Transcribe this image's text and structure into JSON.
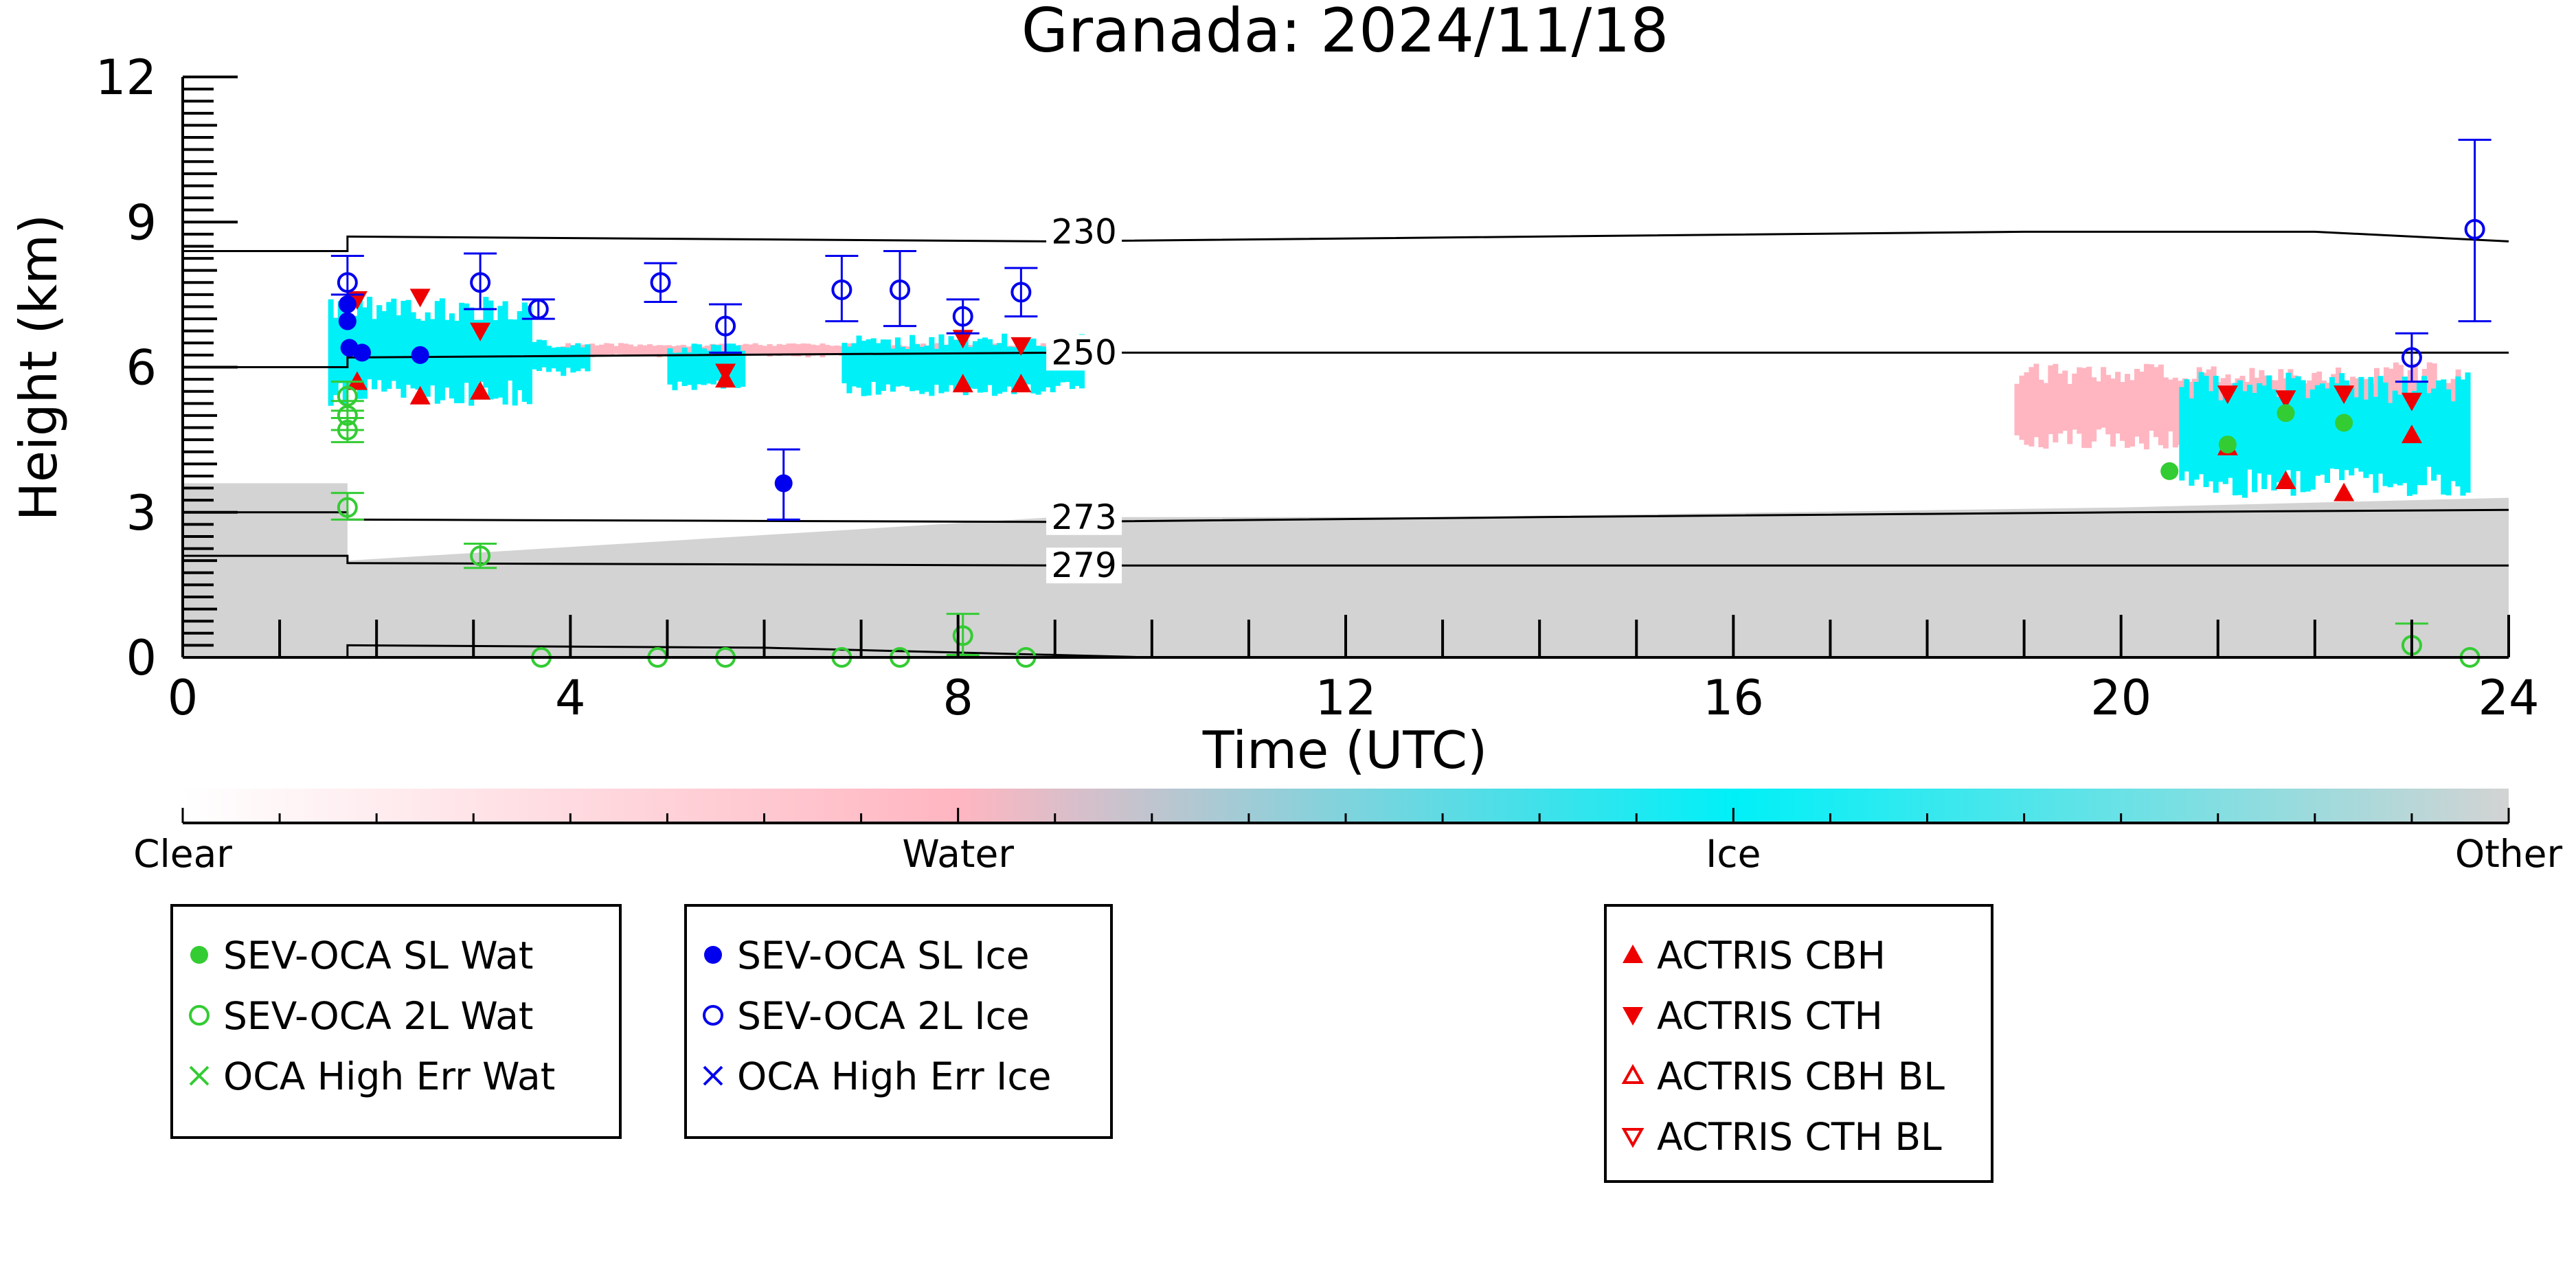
{
  "chart_data": {
    "type": "scatter",
    "title": "Granada: 2024/11/18",
    "xlabel": "Time (UTC)",
    "ylabel": "Height (km)",
    "xlim": [
      0,
      24
    ],
    "ylim": [
      0,
      12
    ],
    "xticks": [
      0,
      4,
      8,
      12,
      16,
      20,
      24
    ],
    "yticks": [
      0,
      3,
      6,
      9,
      12
    ],
    "grid": false,
    "background_classification": {
      "colorbar_labels": [
        "Clear",
        "Water",
        "Ice",
        "Other"
      ],
      "colors": {
        "clear": "#ffffff",
        "water": "#ffb6c1",
        "ice": "#00f0f8",
        "other": "#d3d3d3"
      },
      "other_layer_top_km": [
        [
          0,
          3.6
        ],
        [
          1.7,
          3.6
        ],
        [
          1.7,
          2.0
        ],
        [
          9,
          2.9
        ],
        [
          13,
          2.9
        ],
        [
          20,
          3.1
        ],
        [
          24,
          3.3
        ]
      ],
      "ice_regions": [
        {
          "x": [
            1.5,
            3.6
          ],
          "y": [
            5.2,
            7.5
          ]
        },
        {
          "x": [
            3.6,
            4.2
          ],
          "y": [
            5.8,
            6.6
          ]
        },
        {
          "x": [
            5.0,
            5.8
          ],
          "y": [
            5.5,
            6.5
          ]
        },
        {
          "x": [
            6.8,
            9.3
          ],
          "y": [
            5.4,
            6.7
          ]
        },
        {
          "x": [
            20.6,
            23.6
          ],
          "y": [
            3.3,
            5.9
          ]
        }
      ],
      "water_regions": [
        {
          "x": [
            3.9,
            9.0
          ],
          "y": [
            6.2,
            6.5
          ]
        },
        {
          "x": [
            18.9,
            23.6
          ],
          "y": [
            4.3,
            6.1
          ]
        }
      ]
    },
    "isotherms": [
      {
        "label": "230",
        "label_x": 9.3,
        "points": [
          [
            0,
            8.4
          ],
          [
            1.7,
            8.4
          ],
          [
            1.7,
            8.7
          ],
          [
            9,
            8.6
          ],
          [
            19,
            8.8
          ],
          [
            22,
            8.8
          ],
          [
            24,
            8.6
          ]
        ]
      },
      {
        "label": "250",
        "label_x": 9.3,
        "points": [
          [
            0,
            6.0
          ],
          [
            1.7,
            6.0
          ],
          [
            1.7,
            6.2
          ],
          [
            9,
            6.3
          ],
          [
            20,
            6.3
          ],
          [
            24,
            6.3
          ]
        ]
      },
      {
        "label": "273",
        "label_x": 9.3,
        "points": [
          [
            0,
            3.0
          ],
          [
            1.7,
            3.0
          ],
          [
            1.7,
            2.85
          ],
          [
            9,
            2.8
          ],
          [
            14,
            2.9
          ],
          [
            20,
            3.0
          ],
          [
            24,
            3.05
          ]
        ]
      },
      {
        "label": "279",
        "label_x": 9.3,
        "points": [
          [
            0,
            2.1
          ],
          [
            1.7,
            2.1
          ],
          [
            1.7,
            1.95
          ],
          [
            9,
            1.9
          ],
          [
            20,
            1.9
          ],
          [
            24,
            1.9
          ]
        ]
      }
    ],
    "lower_contour": [
      [
        1.7,
        0
      ],
      [
        1.7,
        0.25
      ],
      [
        6,
        0.2
      ],
      [
        10,
        0.0
      ]
    ],
    "series": [
      {
        "name": "SEV-OCA SL Wat",
        "marker": "filled-circle",
        "color": "#33cc33",
        "points": [
          {
            "x": 20.5,
            "y": 3.85
          },
          {
            "x": 21.1,
            "y": 4.4
          },
          {
            "x": 21.7,
            "y": 5.05
          },
          {
            "x": 22.3,
            "y": 4.85
          }
        ]
      },
      {
        "name": "SEV-OCA 2L Wat",
        "marker": "open-circle",
        "color": "#33cc33",
        "points": [
          {
            "x": 1.7,
            "y": 5.4,
            "err": [
              5.1,
              5.7
            ]
          },
          {
            "x": 1.7,
            "y": 5.0,
            "err": [
              4.7,
              5.3
            ]
          },
          {
            "x": 1.7,
            "y": 4.7,
            "err": [
              4.45,
              4.95
            ]
          },
          {
            "x": 1.7,
            "y": 3.1,
            "err": [
              2.85,
              3.4
            ]
          },
          {
            "x": 3.07,
            "y": 2.1,
            "err": [
              1.85,
              2.35
            ]
          },
          {
            "x": 3.7,
            "y": 0.0
          },
          {
            "x": 4.9,
            "y": 0.0
          },
          {
            "x": 5.6,
            "y": 0.0
          },
          {
            "x": 6.8,
            "y": 0.0
          },
          {
            "x": 7.4,
            "y": 0.0
          },
          {
            "x": 8.05,
            "y": 0.45,
            "err": [
              0.05,
              0.9
            ]
          },
          {
            "x": 8.7,
            "y": 0.0
          },
          {
            "x": 23.0,
            "y": 0.25,
            "err": [
              0.0,
              0.7
            ]
          },
          {
            "x": 23.6,
            "y": 0.0
          }
        ]
      },
      {
        "name": "OCA High Err Wat",
        "marker": "x",
        "color": "#33cc33",
        "points": []
      },
      {
        "name": "SEV-OCA SL Ice",
        "marker": "filled-circle",
        "color": "#0000ee",
        "points": [
          {
            "x": 1.7,
            "y": 7.3
          },
          {
            "x": 1.7,
            "y": 6.95
          },
          {
            "x": 1.72,
            "y": 6.4
          },
          {
            "x": 1.85,
            "y": 6.3
          },
          {
            "x": 2.45,
            "y": 6.25
          },
          {
            "x": 6.2,
            "y": 3.6,
            "err": [
              2.85,
              4.3
            ]
          }
        ]
      },
      {
        "name": "SEV-OCA 2L Ice",
        "marker": "open-circle",
        "color": "#0000ee",
        "points": [
          {
            "x": 1.7,
            "y": 7.75,
            "err": [
              7.5,
              8.3
            ]
          },
          {
            "x": 3.07,
            "y": 7.75,
            "err": [
              7.2,
              8.35
            ]
          },
          {
            "x": 3.67,
            "y": 7.2,
            "err": [
              7.0,
              7.4
            ]
          },
          {
            "x": 4.93,
            "y": 7.75,
            "err": [
              7.35,
              8.15
            ]
          },
          {
            "x": 5.6,
            "y": 6.85,
            "err": [
              6.3,
              7.3
            ]
          },
          {
            "x": 6.8,
            "y": 7.6,
            "err": [
              6.95,
              8.3
            ]
          },
          {
            "x": 7.4,
            "y": 7.6,
            "err": [
              6.85,
              8.4
            ]
          },
          {
            "x": 8.05,
            "y": 7.05,
            "err": [
              6.7,
              7.4
            ]
          },
          {
            "x": 8.65,
            "y": 7.55,
            "err": [
              7.05,
              8.05
            ]
          },
          {
            "x": 23.0,
            "y": 6.2,
            "err": [
              5.7,
              6.7
            ]
          },
          {
            "x": 23.65,
            "y": 8.85,
            "err": [
              6.95,
              10.7
            ]
          }
        ]
      },
      {
        "name": "OCA High Err Ice",
        "marker": "x",
        "color": "#0000ee",
        "points": []
      },
      {
        "name": "ACTRIS CBH",
        "marker": "filled-triangle-up",
        "color": "#ee0000",
        "points": [
          {
            "x": 1.8,
            "y": 5.7
          },
          {
            "x": 2.45,
            "y": 5.4
          },
          {
            "x": 3.07,
            "y": 5.5
          },
          {
            "x": 5.6,
            "y": 5.75
          },
          {
            "x": 8.05,
            "y": 5.65
          },
          {
            "x": 8.65,
            "y": 5.65
          },
          {
            "x": 21.1,
            "y": 4.35
          },
          {
            "x": 21.7,
            "y": 3.65
          },
          {
            "x": 22.3,
            "y": 3.4
          },
          {
            "x": 23.0,
            "y": 4.6
          }
        ]
      },
      {
        "name": "ACTRIS CTH",
        "marker": "filled-triangle-down",
        "color": "#ee0000",
        "points": [
          {
            "x": 1.8,
            "y": 7.4
          },
          {
            "x": 2.45,
            "y": 7.45
          },
          {
            "x": 3.07,
            "y": 6.75
          },
          {
            "x": 5.6,
            "y": 5.9
          },
          {
            "x": 8.05,
            "y": 6.6
          },
          {
            "x": 8.65,
            "y": 6.45
          },
          {
            "x": 21.1,
            "y": 5.45
          },
          {
            "x": 21.7,
            "y": 5.35
          },
          {
            "x": 22.3,
            "y": 5.45
          },
          {
            "x": 23.0,
            "y": 5.3
          }
        ]
      },
      {
        "name": "ACTRIS CBH BL",
        "marker": "open-triangle-up",
        "color": "#ee0000",
        "points": []
      },
      {
        "name": "ACTRIS CTH BL",
        "marker": "open-triangle-down",
        "color": "#ee0000",
        "points": []
      }
    ]
  },
  "legends": [
    [
      "SEV-OCA SL Wat",
      "SEV-OCA 2L Wat",
      "OCA High Err Wat"
    ],
    [
      "SEV-OCA SL Ice",
      "SEV-OCA 2L Ice",
      "OCA High Err Ice"
    ],
    [
      "ACTRIS CBH",
      "ACTRIS CTH",
      "ACTRIS CBH BL",
      "ACTRIS CTH BL"
    ]
  ]
}
